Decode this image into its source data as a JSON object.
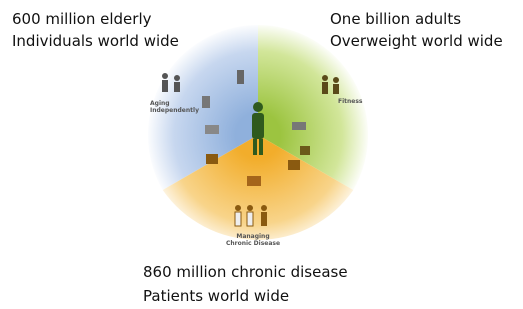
{
  "captions": {
    "elderly": [
      "600 million elderly",
      "Individuals world wide"
    ],
    "overweight": [
      "One billion adults",
      "Overweight world wide"
    ],
    "chronic": [
      "860 million chronic disease",
      "Patients world wide"
    ]
  },
  "diagram": {
    "segments": [
      {
        "label": [
          "Aging",
          "Independently"
        ]
      },
      {
        "label": [
          "Fitness"
        ]
      },
      {
        "label": [
          "Managing",
          "Chronic Disease"
        ]
      }
    ]
  }
}
